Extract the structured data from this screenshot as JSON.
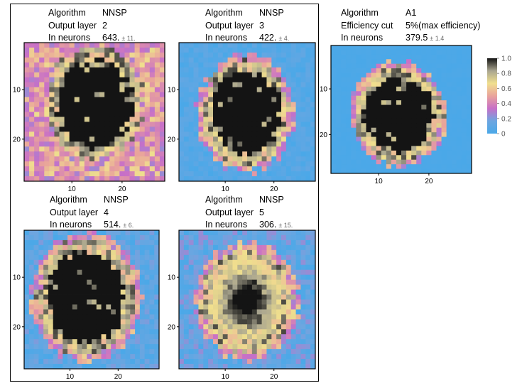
{
  "chart_data": [
    {
      "type": "heatmap",
      "info": [
        {
          "label": "Algorithm",
          "value": "NNSP",
          "error": ""
        },
        {
          "label": "Output layer",
          "value": "2",
          "error": ""
        },
        {
          "label": "In neurons",
          "value": "643.",
          "error": "± 11."
        }
      ],
      "x_ticks": [
        "10",
        "20"
      ],
      "y_ticks": [
        "10",
        "20"
      ],
      "grid_size": 28,
      "xlim": [
        0.5,
        28.5
      ],
      "ylim": [
        0.5,
        28.5
      ],
      "zlim": [
        0,
        1
      ],
      "inner_value": 1.0,
      "blob": {
        "cx": 14.5,
        "cy": 12.8,
        "rx": 9.6,
        "ry": 11.3
      },
      "outside_range": [
        0.28,
        0.68
      ],
      "border_value": 0.25
    },
    {
      "type": "heatmap",
      "info": [
        {
          "label": "Algorithm",
          "value": "NNSP",
          "error": ""
        },
        {
          "label": "Output layer",
          "value": "3",
          "error": ""
        },
        {
          "label": "In neurons",
          "value": "422.",
          "error": "± 4."
        }
      ],
      "x_ticks": [
        "10",
        "20"
      ],
      "y_ticks": [
        "10",
        "20"
      ],
      "grid_size": 28,
      "xlim": [
        0.5,
        28.5
      ],
      "ylim": [
        0.5,
        28.5
      ],
      "zlim": [
        0,
        1
      ],
      "inner_value": 1.0,
      "blob": {
        "cx": 14.3,
        "cy": 14.8,
        "rx": 9.0,
        "ry": 10.6
      },
      "outside_range": [
        0.0,
        0.12
      ],
      "border_value": 0.0
    },
    {
      "type": "heatmap",
      "info": [
        {
          "label": "Algorithm",
          "value": "A1",
          "error": ""
        },
        {
          "label": "Efficiency cut",
          "value": "5%(max efficiency)",
          "error": ""
        },
        {
          "label": "In neurons",
          "value": "379.5",
          "error": "± 1.4"
        }
      ],
      "x_ticks": [
        "10",
        "20"
      ],
      "y_ticks": [
        "10",
        "20"
      ],
      "grid_size": 28,
      "xlim": [
        0.5,
        28.5
      ],
      "ylim": [
        0.5,
        28.5
      ],
      "zlim": [
        0,
        1
      ],
      "inner_value": 1.0,
      "blob": {
        "cx": 14.0,
        "cy": 15.5,
        "rx": 8.6,
        "ry": 10.3
      },
      "outside_range": [
        0.0,
        0.02
      ],
      "border_value": 0.0
    },
    {
      "type": "heatmap",
      "info": [
        {
          "label": "Algorithm",
          "value": "NNSP",
          "error": ""
        },
        {
          "label": "Output layer",
          "value": "4",
          "error": ""
        },
        {
          "label": "In neurons",
          "value": "514.",
          "error": "± 6."
        }
      ],
      "x_ticks": [
        "10",
        "20"
      ],
      "y_ticks": [
        "10",
        "20"
      ],
      "grid_size": 28,
      "xlim": [
        0.5,
        28.5
      ],
      "ylim": [
        0.5,
        28.5
      ],
      "zlim": [
        0,
        1
      ],
      "inner_value": 1.0,
      "blob": {
        "cx": 13.5,
        "cy": 14.0,
        "rx": 10.2,
        "ry": 11.8
      },
      "outside_range": [
        0.0,
        0.2
      ],
      "border_value": 0.0
    },
    {
      "type": "heatmap",
      "info": [
        {
          "label": "Algorithm",
          "value": "NNSP",
          "error": ""
        },
        {
          "label": "Output layer",
          "value": "5",
          "error": ""
        },
        {
          "label": "In neurons",
          "value": "306.",
          "error": "± 15."
        }
      ],
      "x_ticks": [
        "10",
        "20"
      ],
      "y_ticks": [
        "10",
        "20"
      ],
      "grid_size": 28,
      "xlim": [
        0.5,
        28.5
      ],
      "ylim": [
        0.5,
        28.5
      ],
      "zlim": [
        0,
        1
      ],
      "inner_value": 0.85,
      "blob": {
        "cx": 14.5,
        "cy": 14.8,
        "rx": 9.6,
        "ry": 10.6
      },
      "outside_range": [
        0.0,
        0.25
      ],
      "border_value": 0.0
    }
  ],
  "colorbar": {
    "ticks": [
      "0",
      "0.2",
      "0.4",
      "0.6",
      "0.8",
      "1.0"
    ],
    "tick_values": [
      0,
      0.2,
      0.4,
      0.6,
      0.8,
      1.0
    ],
    "colors": [
      "#4aa8e8",
      "#6da6e0",
      "#c76fc8",
      "#e9a39b",
      "#f0df8e",
      "#a9a58f",
      "#141414"
    ]
  }
}
